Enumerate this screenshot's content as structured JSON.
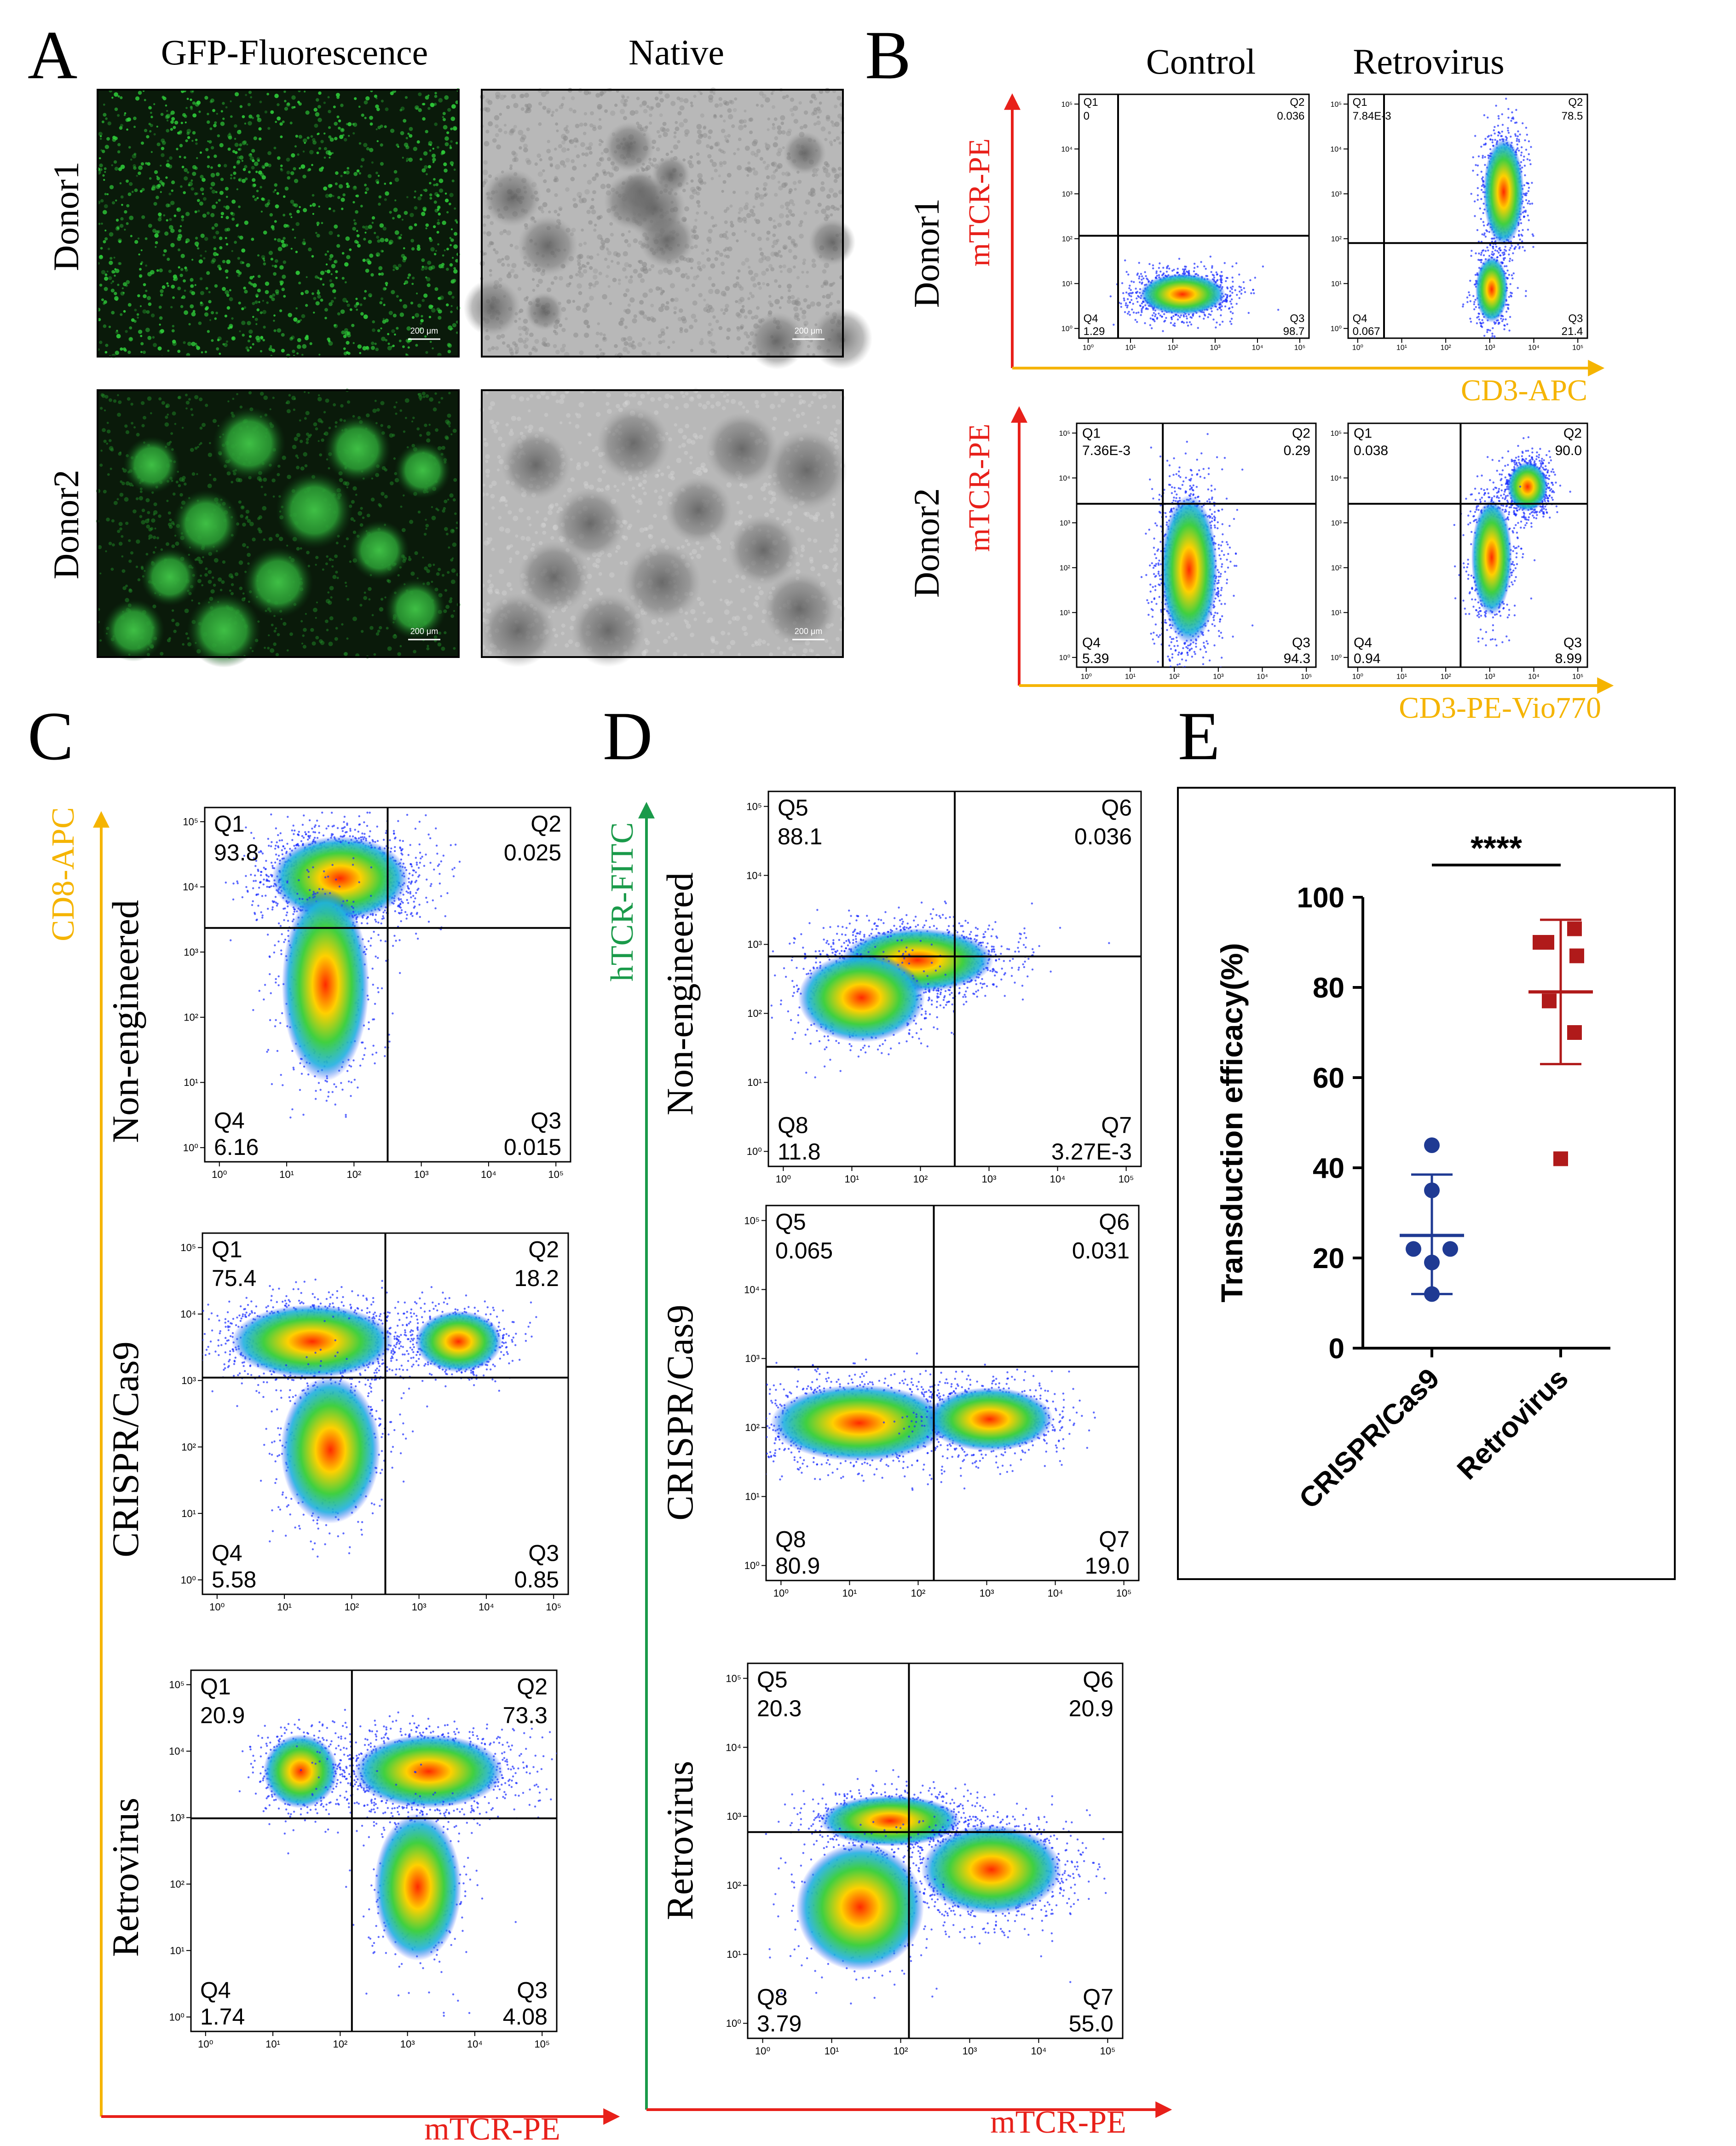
{
  "figure": {
    "panel_labels": [
      "A",
      "B",
      "C",
      "D",
      "E"
    ]
  },
  "panel_a": {
    "column_titles": [
      "GFP-Fluorescence",
      "Native"
    ],
    "row_labels": [
      "Donor1",
      "Donor2"
    ],
    "scale_bar_text": "200 μm",
    "colors": {
      "gfp_dark": "#0a1a0a",
      "gfp_bright": "#2fa83a",
      "native_bg": "#b8b8b8",
      "native_dark": "#6a6a6a"
    }
  },
  "panel_b": {
    "column_titles": [
      "Control",
      "Retrovirus"
    ],
    "row_labels": [
      "Donor1",
      "Donor2"
    ],
    "y_axis_labels": [
      "mTCR-PE",
      "mTCR-PE"
    ],
    "x_axis_labels": [
      "CD3-APC",
      "CD3-PE-Vio770"
    ],
    "quadrant_names": [
      "Q1",
      "Q2",
      "Q3",
      "Q4"
    ],
    "plots": [
      {
        "q1": "0",
        "q2": "0.036",
        "q3": "98.7",
        "q4": "1.29"
      },
      {
        "q1": "7.84E-3",
        "q2": "78.5",
        "q3": "21.4",
        "q4": "0.067"
      },
      {
        "q1": "7.36E-3",
        "q2": "0.29",
        "q3": "94.3",
        "q4": "5.39"
      },
      {
        "q1": "0.038",
        "q2": "90.0",
        "q3": "8.99",
        "q4": "0.94"
      }
    ]
  },
  "panel_c": {
    "y_axis_label": "CD8-APC",
    "x_axis_label": "mTCR-PE",
    "row_labels": [
      "Non-engineered",
      "CRISPR/Cas9",
      "Retrovirus"
    ],
    "quadrant_names": [
      "Q1",
      "Q2",
      "Q3",
      "Q4"
    ],
    "plots": [
      {
        "q1": "93.8",
        "q2": "0.025",
        "q3": "0.015",
        "q4": "6.16"
      },
      {
        "q1": "75.4",
        "q2": "18.2",
        "q3": "0.85",
        "q4": "5.58"
      },
      {
        "q1": "20.9",
        "q2": "73.3",
        "q3": "4.08",
        "q4": "1.74"
      }
    ]
  },
  "panel_d": {
    "y_axis_label": "hTCR-FITC",
    "x_axis_label": "mTCR-PE",
    "row_labels": [
      "Non-engineered",
      "CRISPR/Cas9",
      "Retrovirus"
    ],
    "quadrant_names": [
      "Q5",
      "Q6",
      "Q7",
      "Q8"
    ],
    "plots": [
      {
        "q5": "88.1",
        "q6": "0.036",
        "q7": "3.27E-3",
        "q8": "11.8"
      },
      {
        "q5": "0.065",
        "q6": "0.031",
        "q7": "19.0",
        "q8": "80.9"
      },
      {
        "q5": "20.3",
        "q6": "20.9",
        "q7": "55.0",
        "q8": "3.79"
      }
    ]
  },
  "flow_axes": {
    "tick_labels": [
      "10⁰",
      "10¹",
      "10²",
      "10³",
      "10⁴",
      "10⁵"
    ]
  },
  "axis_colors": {
    "red": "#e8201a",
    "orange": "#f5b400",
    "green": "#1a9a4a"
  },
  "chart_data": {
    "type": "scatter",
    "categories": [
      "CRISPR/Cas9",
      "Retrovirus"
    ],
    "ylabel": "Transduction efficacy(%)",
    "ylim": [
      0,
      100
    ],
    "y_ticks": [
      0,
      20,
      40,
      60,
      80,
      100
    ],
    "significance": "****",
    "series": [
      {
        "category": "CRISPR/Cas9",
        "color": "#1f3a93",
        "marker": "circle",
        "values": [
          45,
          35,
          22,
          22,
          19,
          12
        ],
        "mean": 25,
        "sd_upper": 38.5,
        "sd_lower": 12
      },
      {
        "category": "Retrovirus",
        "color": "#b01a1a",
        "marker": "square",
        "values": [
          90,
          93,
          90,
          87,
          77,
          70,
          42
        ],
        "mean": 79,
        "sd_upper": 95,
        "sd_lower": 63
      }
    ]
  }
}
